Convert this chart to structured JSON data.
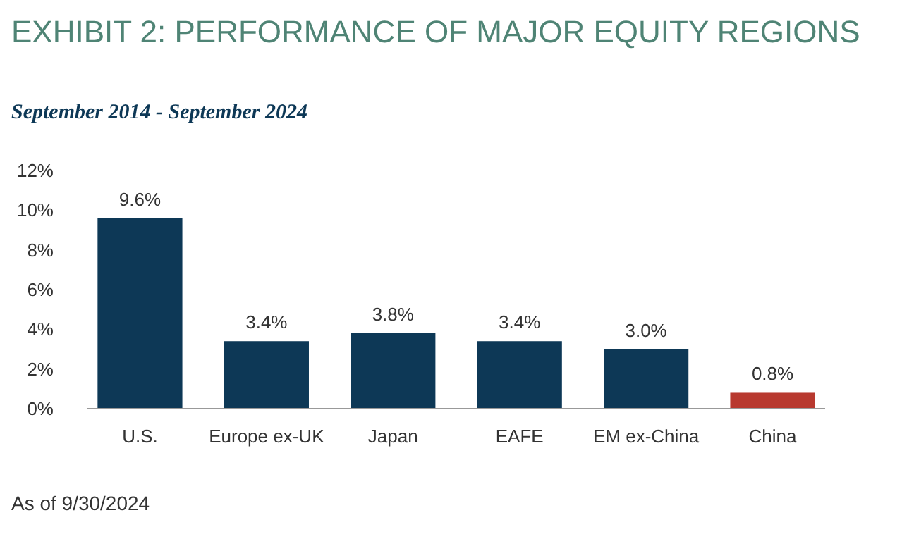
{
  "chart_data": {
    "type": "bar",
    "title": "EXHIBIT 2: PERFORMANCE OF MAJOR EQUITY REGIONS",
    "subtitle": "September 2014 - September 2024",
    "categories": [
      "U.S.",
      "Europe ex-UK",
      "Japan",
      "EAFE",
      "EM ex-China",
      "China"
    ],
    "values": [
      9.6,
      3.4,
      3.8,
      3.4,
      3.0,
      0.8
    ],
    "colors": [
      "#0d3856",
      "#0d3856",
      "#0d3856",
      "#0d3856",
      "#0d3856",
      "#b8392f"
    ],
    "value_labels": [
      "9.6%",
      "3.4%",
      "3.8%",
      "3.4%",
      "3.0%",
      "0.8%"
    ],
    "ylim": [
      0,
      12
    ],
    "yticks": [
      {
        "value": 0,
        "label": "0%"
      },
      {
        "value": 2,
        "label": "2%"
      },
      {
        "value": 4,
        "label": "4%"
      },
      {
        "value": 6,
        "label": "6%"
      },
      {
        "value": 8,
        "label": "8%"
      },
      {
        "value": 10,
        "label": "10%"
      },
      {
        "value": 12,
        "label": "12%"
      }
    ],
    "grid": false,
    "annotations": [
      "As of 9/30/2024"
    ]
  }
}
